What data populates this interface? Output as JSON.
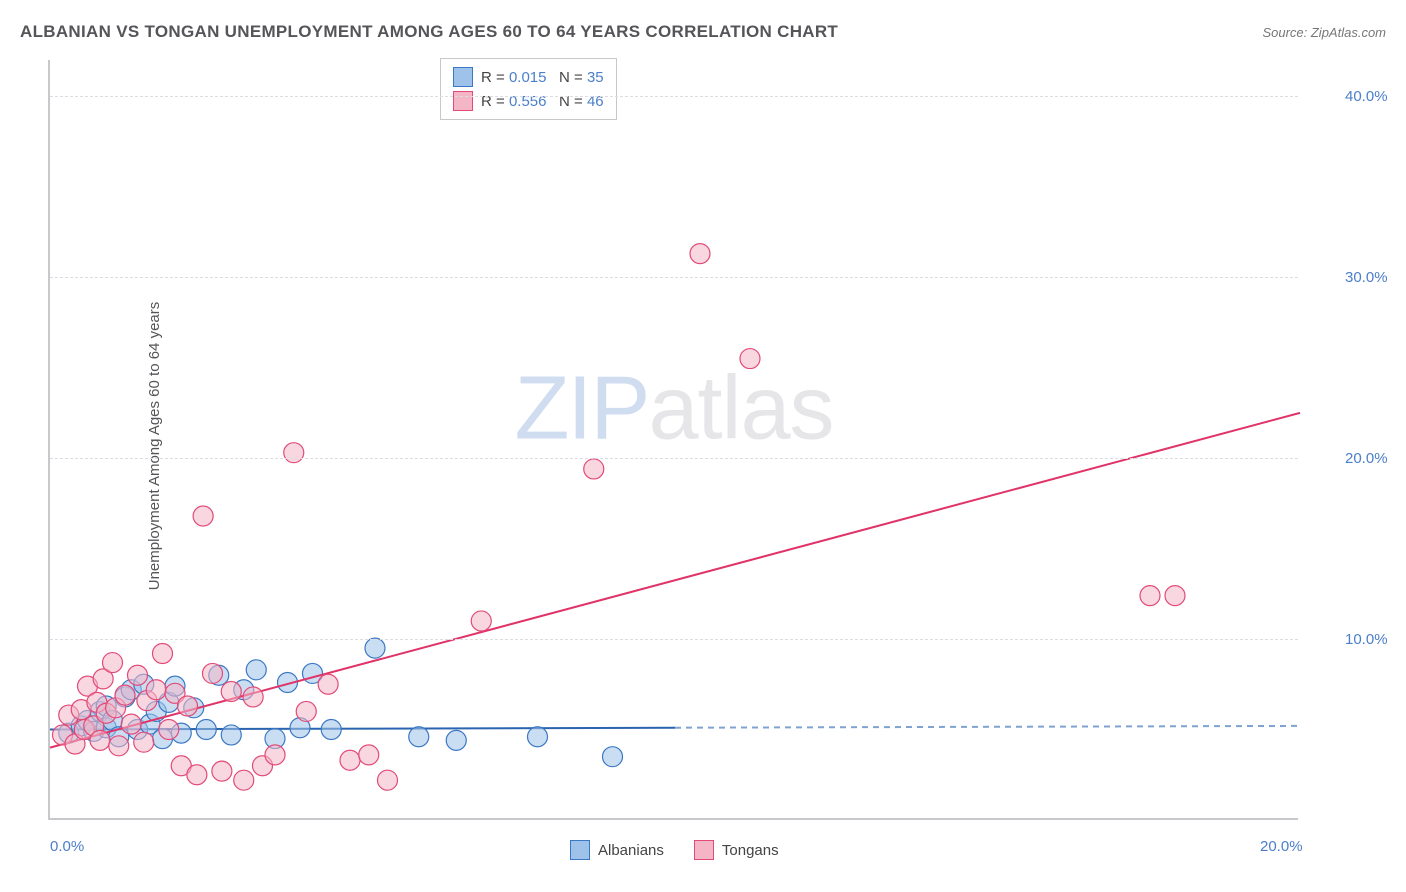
{
  "header": {
    "title": "ALBANIAN VS TONGAN UNEMPLOYMENT AMONG AGES 60 TO 64 YEARS CORRELATION CHART",
    "source": "Source: ZipAtlas.com"
  },
  "chart": {
    "type": "scatter",
    "y_axis_title": "Unemployment Among Ages 60 to 64 years",
    "xlim": [
      0,
      20
    ],
    "ylim": [
      0,
      42
    ],
    "x_ticks": [
      {
        "v": 0,
        "label": "0.0%"
      },
      {
        "v": 20,
        "label": "20.0%"
      }
    ],
    "y_ticks": [
      {
        "v": 10,
        "label": "10.0%"
      },
      {
        "v": 20,
        "label": "20.0%"
      },
      {
        "v": 30,
        "label": "30.0%"
      },
      {
        "v": 40,
        "label": "40.0%"
      }
    ],
    "grid_color": "#dcdde0",
    "axis_color": "#c8c8cc",
    "background_color": "#ffffff",
    "marker_radius": 10,
    "series": [
      {
        "name": "Albanians",
        "fill": "#9fc2ea",
        "stroke": "#3b78c4",
        "fill_opacity": 0.55,
        "regression": {
          "x1": 0,
          "y1": 5.0,
          "x2": 10,
          "y2": 5.2,
          "extend_x": 20,
          "solid_until_x": 10,
          "color": "#2a64b0",
          "width": 2
        },
        "points": [
          [
            0.3,
            4.8
          ],
          [
            0.5,
            5.2
          ],
          [
            0.6,
            5.5
          ],
          [
            0.7,
            4.9
          ],
          [
            0.8,
            6.0
          ],
          [
            0.9,
            5.1
          ],
          [
            0.9,
            6.3
          ],
          [
            1.0,
            5.5
          ],
          [
            1.1,
            4.6
          ],
          [
            1.2,
            6.8
          ],
          [
            1.3,
            7.2
          ],
          [
            1.4,
            5.0
          ],
          [
            1.5,
            7.5
          ],
          [
            1.6,
            5.3
          ],
          [
            1.7,
            6.0
          ],
          [
            1.8,
            4.5
          ],
          [
            1.9,
            6.5
          ],
          [
            2.0,
            7.4
          ],
          [
            2.1,
            4.8
          ],
          [
            2.3,
            6.2
          ],
          [
            2.5,
            5.0
          ],
          [
            2.7,
            8.0
          ],
          [
            2.9,
            4.7
          ],
          [
            3.1,
            7.2
          ],
          [
            3.3,
            8.3
          ],
          [
            3.6,
            4.5
          ],
          [
            3.8,
            7.6
          ],
          [
            4.0,
            5.1
          ],
          [
            4.2,
            8.1
          ],
          [
            4.5,
            5.0
          ],
          [
            5.2,
            9.5
          ],
          [
            5.9,
            4.6
          ],
          [
            6.5,
            4.4
          ],
          [
            7.8,
            4.6
          ],
          [
            9.0,
            3.5
          ]
        ]
      },
      {
        "name": "Tongans",
        "fill": "#f4b6c6",
        "stroke": "#e24a78",
        "fill_opacity": 0.55,
        "regression": {
          "x1": 0,
          "y1": 4.0,
          "x2": 20,
          "y2": 22.5,
          "solid_until_x": 20,
          "color": "#e03368",
          "width": 2
        },
        "points": [
          [
            0.2,
            4.7
          ],
          [
            0.3,
            5.8
          ],
          [
            0.4,
            4.2
          ],
          [
            0.5,
            6.1
          ],
          [
            0.55,
            5.0
          ],
          [
            0.6,
            7.4
          ],
          [
            0.7,
            5.2
          ],
          [
            0.75,
            6.5
          ],
          [
            0.8,
            4.4
          ],
          [
            0.85,
            7.8
          ],
          [
            0.9,
            5.9
          ],
          [
            1.0,
            8.7
          ],
          [
            1.05,
            6.2
          ],
          [
            1.1,
            4.1
          ],
          [
            1.2,
            6.9
          ],
          [
            1.3,
            5.3
          ],
          [
            1.4,
            8.0
          ],
          [
            1.5,
            4.3
          ],
          [
            1.55,
            6.6
          ],
          [
            1.7,
            7.2
          ],
          [
            1.8,
            9.2
          ],
          [
            1.9,
            5.0
          ],
          [
            2.0,
            7.0
          ],
          [
            2.1,
            3.0
          ],
          [
            2.2,
            6.3
          ],
          [
            2.35,
            2.5
          ],
          [
            2.45,
            16.8
          ],
          [
            2.6,
            8.1
          ],
          [
            2.75,
            2.7
          ],
          [
            2.9,
            7.1
          ],
          [
            3.1,
            2.2
          ],
          [
            3.25,
            6.8
          ],
          [
            3.4,
            3.0
          ],
          [
            3.6,
            3.6
          ],
          [
            3.9,
            20.3
          ],
          [
            4.1,
            6.0
          ],
          [
            4.45,
            7.5
          ],
          [
            4.8,
            3.3
          ],
          [
            5.1,
            3.6
          ],
          [
            5.4,
            2.2
          ],
          [
            6.9,
            11.0
          ],
          [
            8.7,
            19.4
          ],
          [
            10.4,
            31.3
          ],
          [
            11.2,
            25.5
          ],
          [
            17.6,
            12.4
          ],
          [
            18.0,
            12.4
          ]
        ]
      }
    ],
    "stats_box": {
      "rows": [
        {
          "swatch_fill": "#9fc2ea",
          "swatch_stroke": "#3b78c4",
          "r": "0.015",
          "n": "35"
        },
        {
          "swatch_fill": "#f4b6c6",
          "swatch_stroke": "#e24a78",
          "r": "0.556",
          "n": "46"
        }
      ],
      "label_r": "R =",
      "label_n": "N ="
    },
    "bottom_legend": [
      {
        "swatch_fill": "#9fc2ea",
        "swatch_stroke": "#3b78c4",
        "label": "Albanians"
      },
      {
        "swatch_fill": "#f4b6c6",
        "swatch_stroke": "#e24a78",
        "label": "Tongans"
      }
    ],
    "watermark": {
      "zip": "ZIP",
      "atlas": "atlas"
    }
  }
}
